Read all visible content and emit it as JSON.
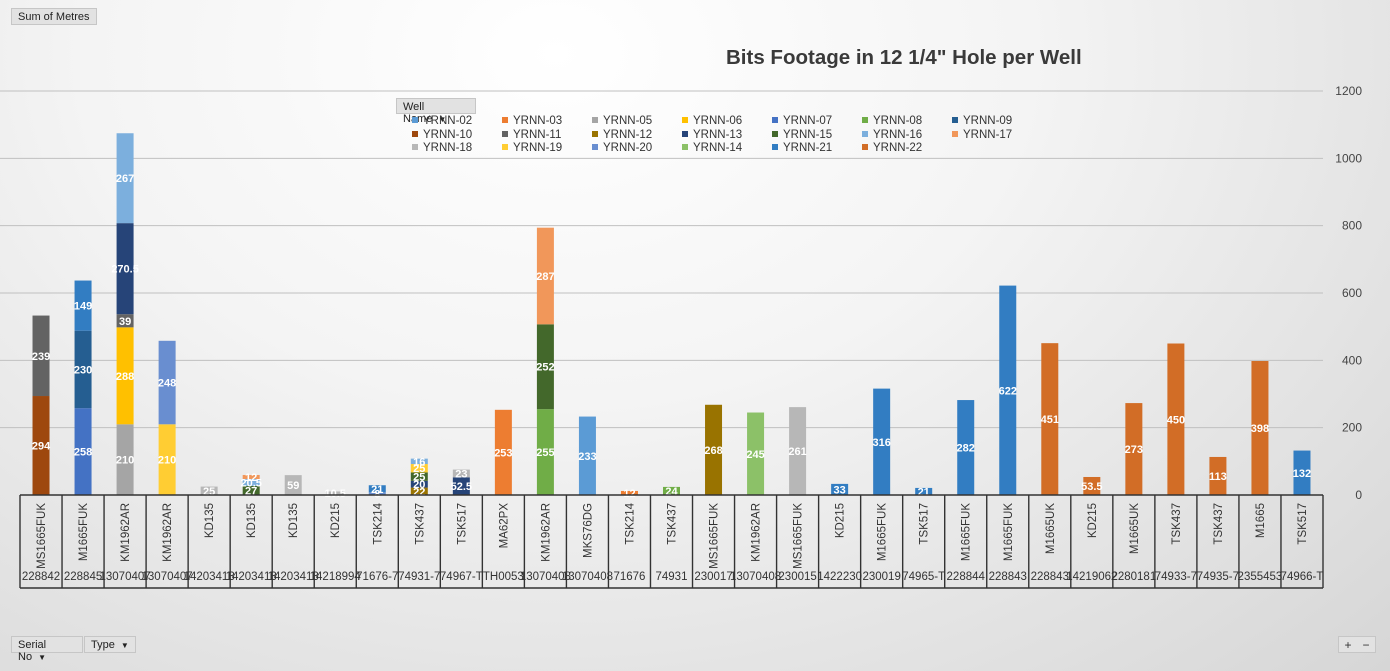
{
  "pivot": {
    "values_field": "Sum of Metres",
    "legend_field": "Well Name",
    "row_fields": [
      "Serial No",
      "Type"
    ],
    "zoom_plus": "+",
    "zoom_minus": "−"
  },
  "chart_data": {
    "type": "bar",
    "stacked": true,
    "title": "Bits Footage in 12 1/4\" Hole per Well",
    "xlabel": "",
    "ylabel": "",
    "ylim": [
      0,
      1200
    ],
    "yticks": [
      0,
      200,
      400,
      600,
      800,
      1000,
      1200
    ],
    "y_axis_side": "right",
    "grid": true,
    "legend_position": "top",
    "legend": [
      {
        "name": "YRNN-02",
        "color": "#5b9bd5"
      },
      {
        "name": "YRNN-03",
        "color": "#ed7d31"
      },
      {
        "name": "YRNN-05",
        "color": "#a5a5a5"
      },
      {
        "name": "YRNN-06",
        "color": "#ffc000"
      },
      {
        "name": "YRNN-07",
        "color": "#4472c4"
      },
      {
        "name": "YRNN-08",
        "color": "#70ad47"
      },
      {
        "name": "YRNN-09",
        "color": "#255e91"
      },
      {
        "name": "YRNN-10",
        "color": "#9e480e"
      },
      {
        "name": "YRNN-11",
        "color": "#636363"
      },
      {
        "name": "YRNN-12",
        "color": "#997300"
      },
      {
        "name": "YRNN-13",
        "color": "#264478"
      },
      {
        "name": "YRNN-15",
        "color": "#43682b"
      },
      {
        "name": "YRNN-16",
        "color": "#7cafdd"
      },
      {
        "name": "YRNN-17",
        "color": "#f1975a"
      },
      {
        "name": "YRNN-18",
        "color": "#b7b7b7"
      },
      {
        "name": "YRNN-19",
        "color": "#ffcd33"
      },
      {
        "name": "YRNN-20",
        "color": "#698ed0"
      },
      {
        "name": "YRNN-14",
        "color": "#8cc168"
      },
      {
        "name": "YRNN-21",
        "color": "#327dc2"
      },
      {
        "name": "YRNN-22",
        "color": "#d26d26"
      }
    ],
    "categories": [
      {
        "type": "MS1665FUK",
        "serial": "228842",
        "segments": [
          {
            "series": "YRNN-10",
            "value": 294,
            "label": "294",
            "color": "#9e480e"
          },
          {
            "series": "YRNN-11",
            "value": 239,
            "label": "239",
            "color": "#636363"
          }
        ]
      },
      {
        "type": "M1665FUK",
        "serial": "228845",
        "segments": [
          {
            "series": "YRNN-07",
            "value": 258,
            "label": "258",
            "color": "#4472c4"
          },
          {
            "series": "YRNN-09",
            "value": 230,
            "label": "230",
            "color": "#255e91"
          },
          {
            "series": "YRNN-21",
            "value": 149,
            "label": "149",
            "color": "#327dc2"
          }
        ]
      },
      {
        "type": "KM1962AR",
        "serial": "13070407",
        "segments": [
          {
            "series": "YRNN-05",
            "value": 210,
            "label": "210",
            "color": "#a5a5a5"
          },
          {
            "series": "YRNN-06",
            "value": 288,
            "label": "288",
            "color": "#ffc000"
          },
          {
            "series": "YRNN-11",
            "value": 39,
            "label": "39",
            "color": "#636363"
          },
          {
            "series": "YRNN-13",
            "value": 270.5,
            "label": "270.5",
            "color": "#264478"
          },
          {
            "series": "YRNN-16",
            "value": 267,
            "label": "267",
            "color": "#7cafdd"
          }
        ]
      },
      {
        "type": "KM1962AR",
        "serial": "13070407",
        "segments": [
          {
            "series": "YRNN-19",
            "value": 210,
            "label": "210",
            "color": "#ffcd33"
          },
          {
            "series": "YRNN-20",
            "value": 248,
            "label": "248",
            "color": "#698ed0"
          }
        ]
      },
      {
        "type": "KD135",
        "serial": "14203413",
        "segments": [
          {
            "series": "YRNN-18",
            "value": 25,
            "label": "25",
            "color": "#b7b7b7"
          }
        ]
      },
      {
        "type": "KD135",
        "serial": "14203413",
        "segments": [
          {
            "series": "YRNN-15",
            "value": 27,
            "label": "27",
            "color": "#43682b"
          },
          {
            "series": "YRNN-16",
            "value": 20.5,
            "label": "20.5",
            "color": "#7cafdd"
          },
          {
            "series": "YRNN-17",
            "value": 12,
            "label": "12",
            "color": "#f1975a"
          }
        ]
      },
      {
        "type": "KD135",
        "serial": "14203413",
        "segments": [
          {
            "series": "YRNN-18",
            "value": 59,
            "label": "59",
            "color": "#b7b7b7"
          }
        ]
      },
      {
        "type": "KD215",
        "serial": "14218994",
        "segments": [
          {
            "series": "YRNN-18",
            "value": 10.5,
            "label": "10.5",
            "color": "#b7b7b7"
          }
        ]
      },
      {
        "type": "TSK214",
        "serial": "71676-7",
        "segments": [
          {
            "series": "YRNN-20",
            "value": 8,
            "label": "8",
            "color": "#698ed0"
          },
          {
            "series": "YRNN-21",
            "value": 21,
            "label": "21",
            "color": "#327dc2"
          }
        ]
      },
      {
        "type": "TSK437",
        "serial": "74931-7",
        "segments": [
          {
            "series": "YRNN-12",
            "value": 22,
            "label": "22",
            "color": "#997300"
          },
          {
            "series": "YRNN-13",
            "value": 20,
            "label": "20",
            "color": "#264478"
          },
          {
            "series": "YRNN-15",
            "value": 25,
            "label": "25",
            "color": "#43682b"
          },
          {
            "series": "YRNN-19",
            "value": 25,
            "label": "25",
            "color": "#ffcd33"
          },
          {
            "series": "YRNN-16",
            "value": 16,
            "label": "16",
            "color": "#7cafdd"
          }
        ]
      },
      {
        "type": "TSK517",
        "serial": "74967-T",
        "segments": [
          {
            "series": "YRNN-13",
            "value": 52.5,
            "label": "52.5",
            "color": "#264478"
          },
          {
            "series": "YRNN-18",
            "value": 23,
            "label": "23",
            "color": "#b7b7b7"
          }
        ]
      },
      {
        "type": "MA62PX",
        "serial": "TH0053",
        "segments": [
          {
            "series": "YRNN-03",
            "value": 253,
            "label": "253",
            "color": "#ed7d31"
          }
        ]
      },
      {
        "type": "KM1962AR",
        "serial": "13070408",
        "segments": [
          {
            "series": "YRNN-08",
            "value": 255,
            "label": "255",
            "color": "#70ad47"
          },
          {
            "series": "YRNN-15",
            "value": 252,
            "label": "252",
            "color": "#43682b"
          },
          {
            "series": "YRNN-17",
            "value": 287,
            "label": "287",
            "color": "#f1975a"
          }
        ]
      },
      {
        "type": "MKS76DG",
        "serial": "13070408",
        "segments": [
          {
            "series": "YRNN-02",
            "value": 233,
            "label": "233",
            "color": "#5b9bd5"
          }
        ]
      },
      {
        "type": "TSK214",
        "serial": "71676",
        "segments": [
          {
            "series": "YRNN-03",
            "value": 12,
            "label": "12",
            "color": "#ed7d31"
          }
        ]
      },
      {
        "type": "TSK437",
        "serial": "74931",
        "segments": [
          {
            "series": "YRNN-08",
            "value": 24,
            "label": "24",
            "color": "#70ad47"
          }
        ]
      },
      {
        "type": "MS1665FUK",
        "serial": "230017",
        "segments": [
          {
            "series": "YRNN-12",
            "value": 268,
            "label": "268",
            "color": "#997300"
          }
        ]
      },
      {
        "type": "KM1962AR",
        "serial": "13070408",
        "segments": [
          {
            "series": "YRNN-14",
            "value": 245,
            "label": "245",
            "color": "#8cc168"
          }
        ]
      },
      {
        "type": "MS1665FUK",
        "serial": "230015",
        "segments": [
          {
            "series": "YRNN-18",
            "value": 261,
            "label": "261",
            "color": "#b7b7b7"
          }
        ]
      },
      {
        "type": "KD215",
        "serial": "1422230",
        "segments": [
          {
            "series": "YRNN-21",
            "value": 33,
            "label": "33",
            "color": "#327dc2"
          }
        ]
      },
      {
        "type": "M1665FUK",
        "serial": "230019",
        "segments": [
          {
            "series": "YRNN-21",
            "value": 316,
            "label": "316",
            "color": "#327dc2"
          }
        ]
      },
      {
        "type": "TSK517",
        "serial": "74965-T",
        "segments": [
          {
            "series": "YRNN-21",
            "value": 21,
            "label": "21",
            "color": "#327dc2"
          }
        ]
      },
      {
        "type": "M1665FUK",
        "serial": "228844",
        "segments": [
          {
            "series": "YRNN-21",
            "value": 282,
            "label": "282",
            "color": "#327dc2"
          }
        ]
      },
      {
        "type": "M1665FUK",
        "serial": "228843",
        "segments": [
          {
            "series": "YRNN-21",
            "value": 622,
            "label": "622",
            "color": "#327dc2"
          }
        ]
      },
      {
        "type": "M1665UK",
        "serial": "228843",
        "segments": [
          {
            "series": "YRNN-22",
            "value": 451,
            "label": "451",
            "color": "#d26d26"
          }
        ]
      },
      {
        "type": "KD215",
        "serial": "14219062",
        "segments": [
          {
            "series": "YRNN-22",
            "value": 53.5,
            "label": "53.5",
            "color": "#d26d26"
          }
        ]
      },
      {
        "type": "M1665UK",
        "serial": "2280181",
        "segments": [
          {
            "series": "YRNN-22",
            "value": 273,
            "label": "273",
            "color": "#d26d26"
          }
        ]
      },
      {
        "type": "TSK437",
        "serial": "74933-7",
        "segments": [
          {
            "series": "YRNN-22",
            "value": 450,
            "label": "450",
            "color": "#d26d26"
          }
        ]
      },
      {
        "type": "TSK437",
        "serial": "74935-7",
        "segments": [
          {
            "series": "YRNN-22",
            "value": 113,
            "label": "113",
            "color": "#d26d26"
          }
        ]
      },
      {
        "type": "M1665",
        "serial": "2355453",
        "segments": [
          {
            "series": "YRNN-22",
            "value": 398,
            "label": "398",
            "color": "#d26d26"
          }
        ]
      },
      {
        "type": "TSK517",
        "serial": "74966-T",
        "segments": [
          {
            "series": "YRNN-21",
            "value": 132,
            "label": "132",
            "color": "#327dc2"
          }
        ]
      }
    ]
  }
}
